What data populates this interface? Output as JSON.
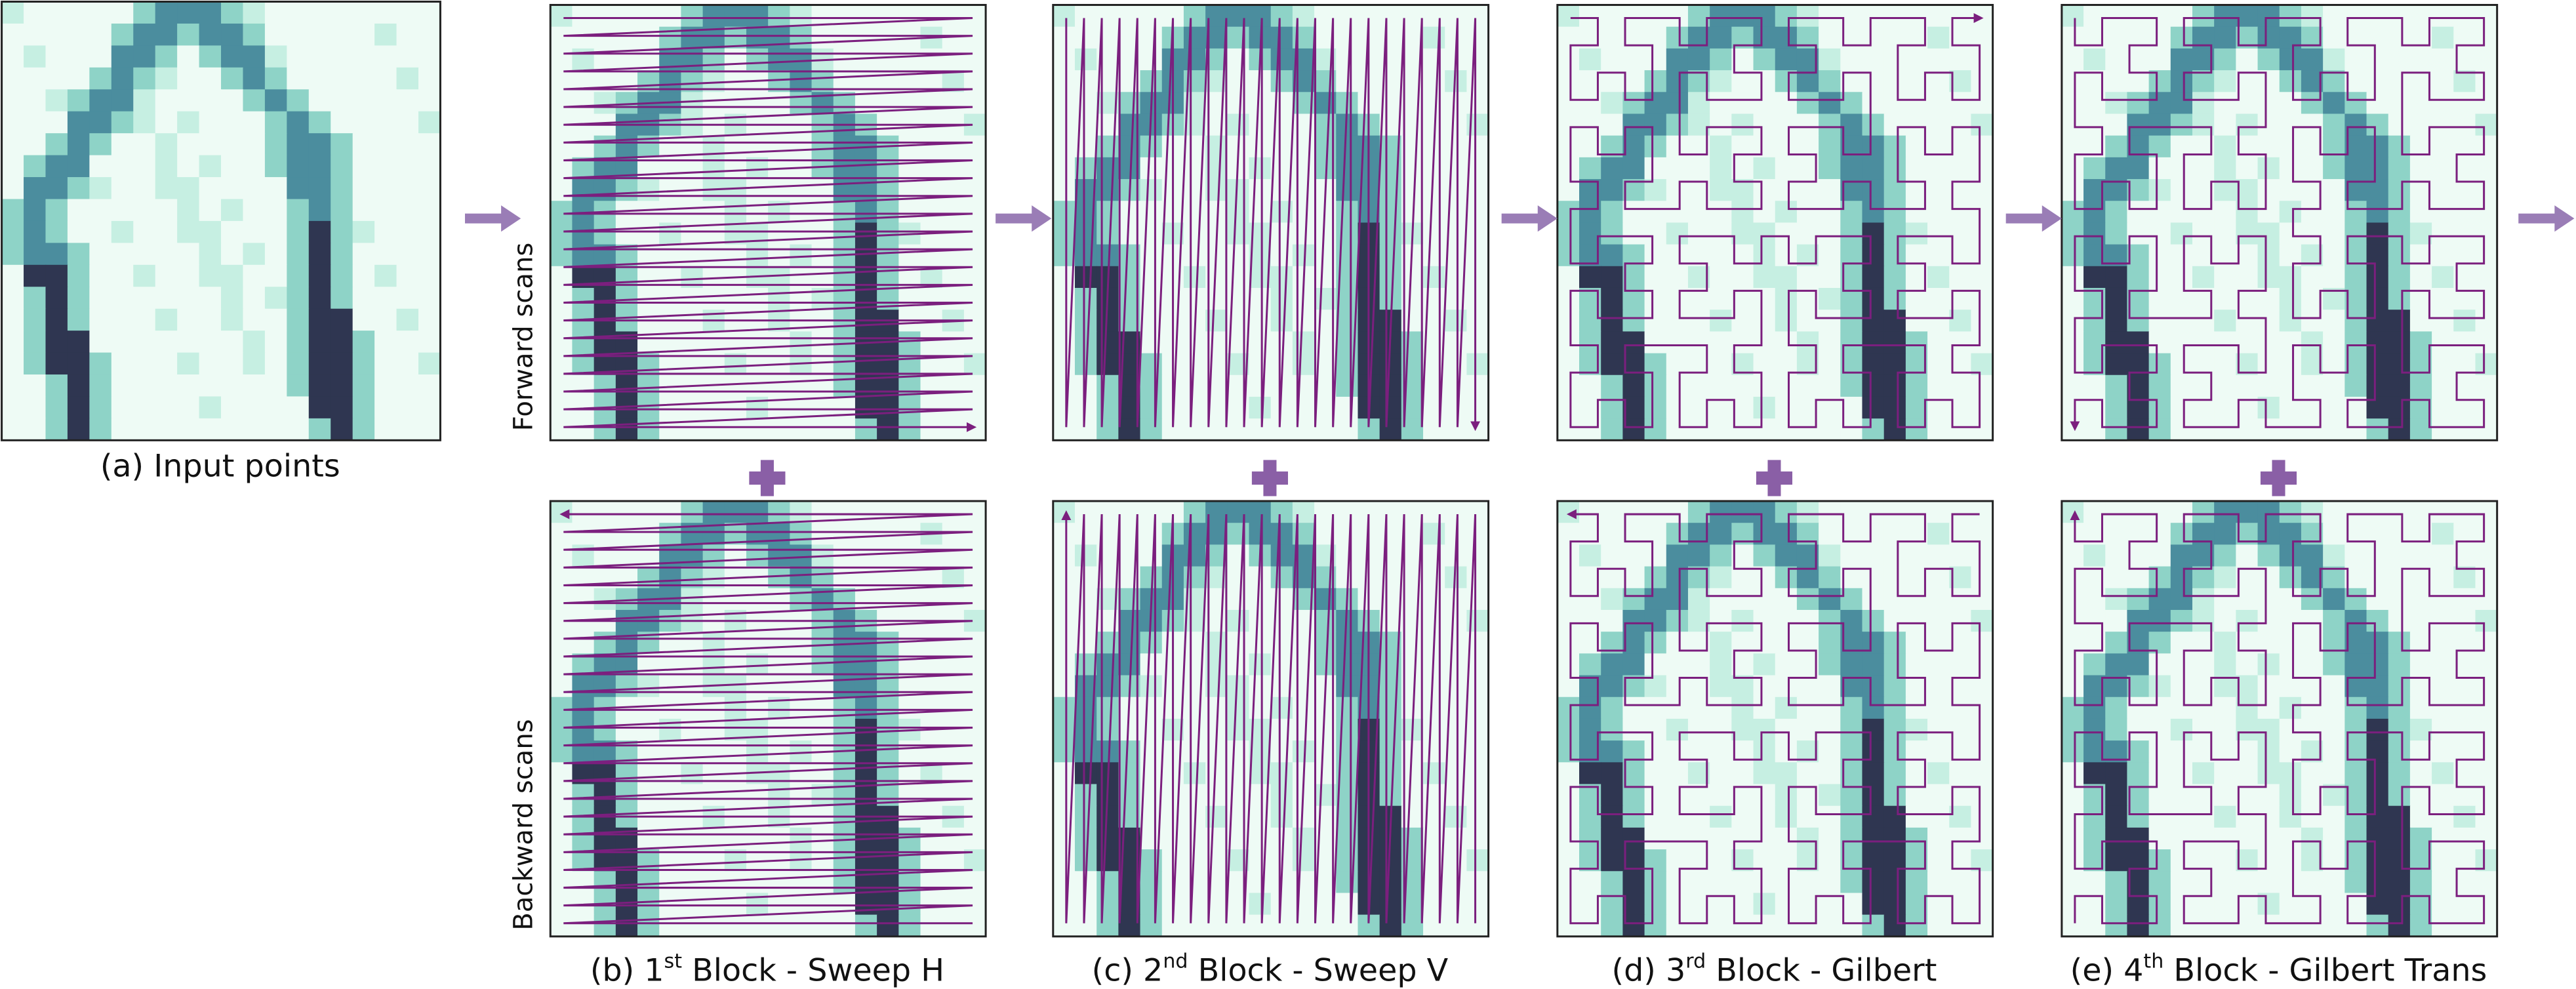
{
  "figure": {
    "panels": [
      {
        "caption": "(a) Input points"
      },
      {
        "prefix": "(b) 1",
        "sup": "st",
        "suffix": " Block - Sweep H"
      },
      {
        "prefix": "(c) 2",
        "sup": "nd",
        "suffix": " Block - Sweep V"
      },
      {
        "prefix": "(d) 3",
        "sup": "rd",
        "suffix": " Block - Gilbert"
      },
      {
        "prefix": "(e) 4",
        "sup": "th",
        "suffix": " Block - Gilbert Trans"
      }
    ],
    "row_labels": {
      "forward": "Forward scans",
      "backward": "Backward scans"
    }
  }
}
